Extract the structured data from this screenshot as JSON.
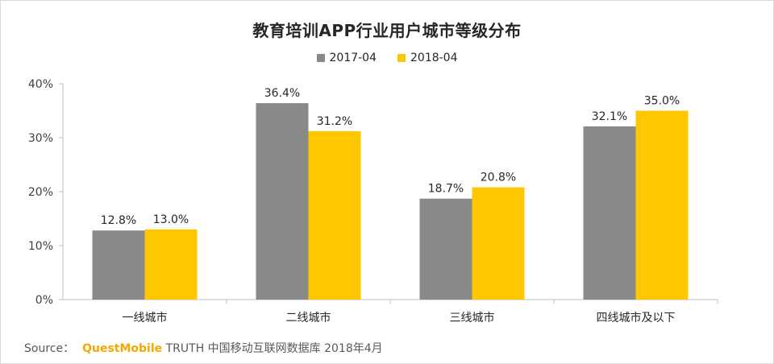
{
  "chart_data": {
    "type": "bar",
    "title": "教育培训APP行业用户城市等级分布",
    "categories": [
      "一线城市",
      "二线城市",
      "三线城市",
      "四线城市及以下"
    ],
    "series": [
      {
        "name": "2017-04",
        "color": "#898989",
        "values": [
          12.8,
          36.4,
          18.7,
          32.1
        ],
        "labels": [
          "12.8%",
          "36.4%",
          "18.7%",
          "32.1%"
        ]
      },
      {
        "name": "2018-04",
        "color": "#ffc700",
        "values": [
          13.0,
          31.2,
          20.8,
          35.0
        ],
        "labels": [
          "13.0%",
          "31.2%",
          "20.8%",
          "35.0%"
        ]
      }
    ],
    "ylim": [
      0,
      40
    ],
    "yticks": [
      0,
      10,
      20,
      30,
      40
    ],
    "ytick_labels": [
      "0%",
      "10%",
      "20%",
      "30%",
      "40%"
    ],
    "xlabel": "",
    "ylabel": "",
    "grid": false,
    "legend_position": "top-center"
  },
  "source": {
    "label": "Source：",
    "brand": "QuestMobile",
    "text": "TRUTH 中国移动互联网数据库 2018年4月"
  }
}
